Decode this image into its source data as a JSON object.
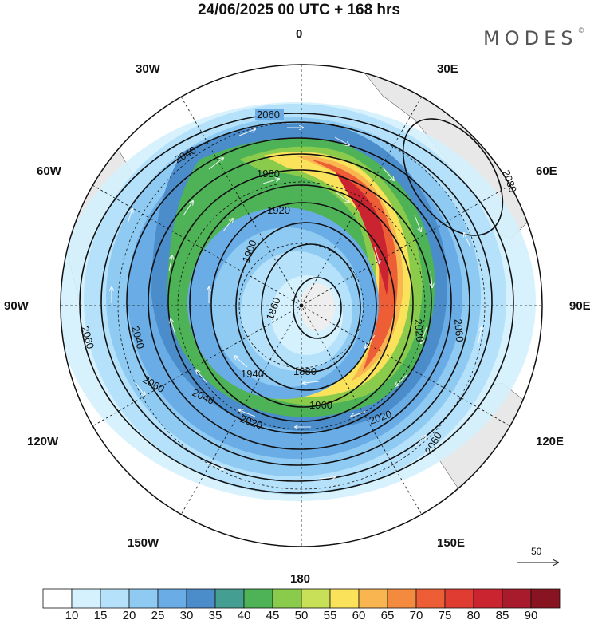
{
  "header": {
    "title": "24/06/2025  00 UTC  + 168 hrs",
    "brand": "MODES",
    "brand_mark": "©"
  },
  "map_labels": {
    "top": "0",
    "left": "90W",
    "right": "90E",
    "bottom": "180",
    "upper_left_1": "30W",
    "upper_left_2": "60W",
    "upper_right_1": "30E",
    "upper_right_2": "60E",
    "lower_left_1": "120W",
    "lower_left_2": "150W",
    "lower_right_1": "120E",
    "lower_right_2": "150E"
  },
  "contours": [
    "2060",
    "2040",
    "1980",
    "1920",
    "1900",
    "1860",
    "1880",
    "1940",
    "1960",
    "2020",
    "2080"
  ],
  "reference_vector": "50",
  "colorbar": {
    "colors": [
      "#ffffff",
      "#d4f1fd",
      "#b5e2fa",
      "#8fcaf2",
      "#6aade6",
      "#4b8cca",
      "#459e92",
      "#4db356",
      "#8acb4c",
      "#c7e057",
      "#fbe25b",
      "#f8b550",
      "#f48a3e",
      "#ed5d36",
      "#e13c31",
      "#c92430",
      "#a81b2c",
      "#881422"
    ],
    "ticks": [
      "10",
      "15",
      "20",
      "25",
      "30",
      "35",
      "40",
      "45",
      "50",
      "55",
      "60",
      "65",
      "70",
      "75",
      "80",
      "85",
      "90"
    ]
  }
}
